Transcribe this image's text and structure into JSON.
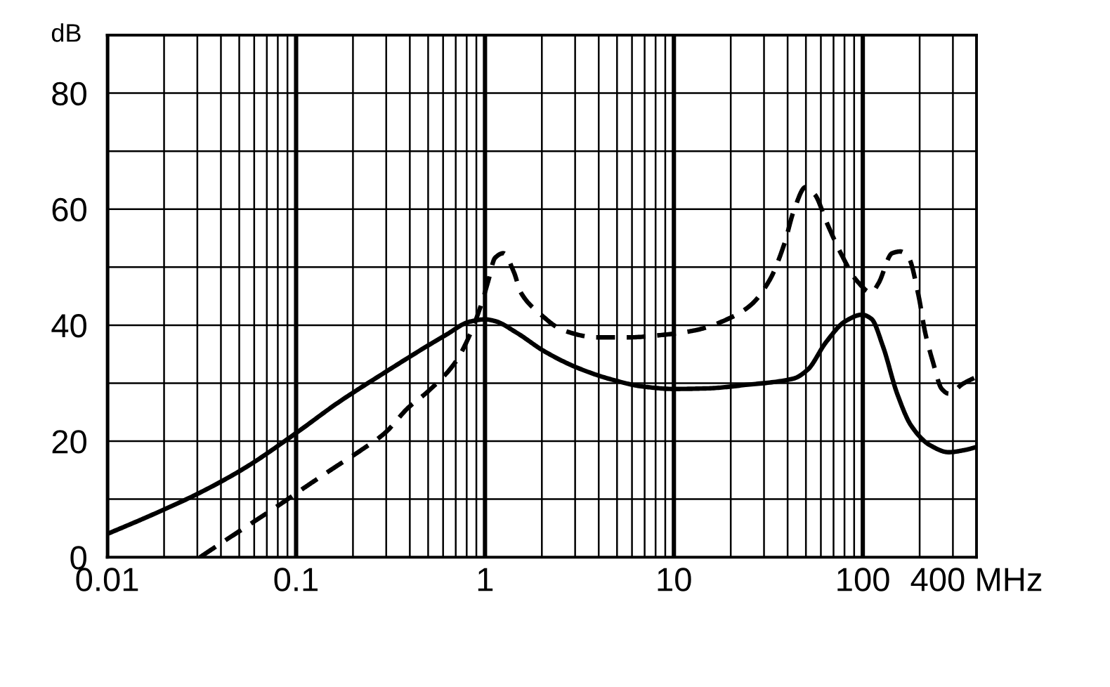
{
  "chart_data": {
    "type": "line",
    "ylabel": "dB",
    "log": "x",
    "grid": true,
    "xlim": [
      0.01,
      400
    ],
    "ylim": [
      0,
      90
    ],
    "xticks": [
      0.01,
      {
        "value": 0.02,
        "label": null
      },
      {
        "value": 0.03,
        "label": null
      },
      {
        "value": 0.04,
        "label": null
      },
      {
        "value": 0.05,
        "label": null
      },
      {
        "value": 0.06,
        "label": null
      },
      {
        "value": 0.07,
        "label": null
      },
      {
        "value": 0.08,
        "label": null
      },
      {
        "value": 0.09,
        "label": null
      },
      0.1,
      {
        "value": 0.2,
        "label": null
      },
      {
        "value": 0.3,
        "label": null
      },
      {
        "value": 0.4,
        "label": null
      },
      {
        "value": 0.5,
        "label": null
      },
      {
        "value": 0.6,
        "label": null
      },
      {
        "value": 0.7,
        "label": null
      },
      {
        "value": 0.8,
        "label": null
      },
      {
        "value": 0.9,
        "label": null
      },
      1,
      {
        "value": 2,
        "label": null
      },
      {
        "value": 3,
        "label": null
      },
      {
        "value": 4,
        "label": null
      },
      {
        "value": 5,
        "label": null
      },
      {
        "value": 6,
        "label": null
      },
      {
        "value": 7,
        "label": null
      },
      {
        "value": 8,
        "label": null
      },
      {
        "value": 9,
        "label": null
      },
      10,
      {
        "value": 20,
        "label": null
      },
      {
        "value": 30,
        "label": null
      },
      {
        "value": 40,
        "label": null
      },
      {
        "value": 50,
        "label": null
      },
      {
        "value": 60,
        "label": null
      },
      {
        "value": 70,
        "label": null
      },
      {
        "value": 80,
        "label": null
      },
      {
        "value": 90,
        "label": null
      },
      100,
      {
        "value": 200,
        "label": null
      },
      {
        "value": 300,
        "label": null
      },
      {
        "value": 400,
        "label": "400 MHz"
      }
    ],
    "yticks": [
      0,
      {
        "value": 10,
        "label": null
      },
      20,
      {
        "value": 30,
        "label": null
      },
      40,
      {
        "value": 50,
        "label": null
      },
      60,
      {
        "value": 70,
        "label": null
      },
      80
    ],
    "series": [
      {
        "color": "#000000",
        "line_style": "solid",
        "x": [
          0.01,
          0.017,
          0.03,
          0.053,
          0.1,
          0.166,
          0.3,
          0.5,
          0.62,
          0.83,
          1,
          1.13,
          1.47,
          2.06,
          3.06,
          4.6,
          6.9,
          10,
          15,
          24,
          43,
          51,
          64,
          81,
          99,
          111,
          128,
          152,
          181,
          227,
          285,
          350,
          400
        ],
        "values": [
          4,
          7.2,
          10.9,
          15.3,
          21.4,
          26.6,
          32,
          36.5,
          38.3,
          40.6,
          41,
          40.7,
          38.7,
          35.5,
          32.7,
          30.7,
          29.4,
          29,
          29.1,
          29.7,
          30.8,
          32.3,
          37.1,
          40.7,
          41.8,
          41.1,
          36.3,
          28.2,
          22.6,
          19.3,
          18.1,
          18.5,
          19
        ]
      },
      {
        "color": "#000000",
        "line_style": "dashed",
        "x": [
          0.031,
          0.04,
          0.059,
          0.084,
          0.112,
          0.157,
          0.222,
          0.295,
          0.393,
          0.5,
          0.7,
          0.83,
          0.956,
          1.04,
          1.13,
          1.25,
          1.42,
          1.55,
          1.95,
          2.6,
          3.9,
          5.8,
          8.6,
          12.9,
          20.6,
          25.8,
          32.4,
          38.5,
          43.1,
          49.8,
          55.8,
          64.4,
          76.5,
          93.3,
          111,
          121,
          143,
          158,
          175,
          197,
          214,
          234,
          262,
          285,
          339,
          400
        ],
        "values": [
          0,
          2.4,
          6,
          9.3,
          12.1,
          15.3,
          18.5,
          21.4,
          25.8,
          28.6,
          33.7,
          38.3,
          43.6,
          47.6,
          51.6,
          52.4,
          49.2,
          45.6,
          42,
          39.1,
          37.9,
          37.9,
          38.3,
          39.1,
          41.5,
          43.6,
          48,
          54.1,
          59.7,
          63.8,
          62.5,
          57.7,
          52.4,
          47.6,
          45.6,
          47.2,
          52.4,
          52.7,
          51.6,
          45.2,
          38.7,
          33.9,
          29,
          28.2,
          29.9,
          31.1
        ]
      }
    ]
  }
}
